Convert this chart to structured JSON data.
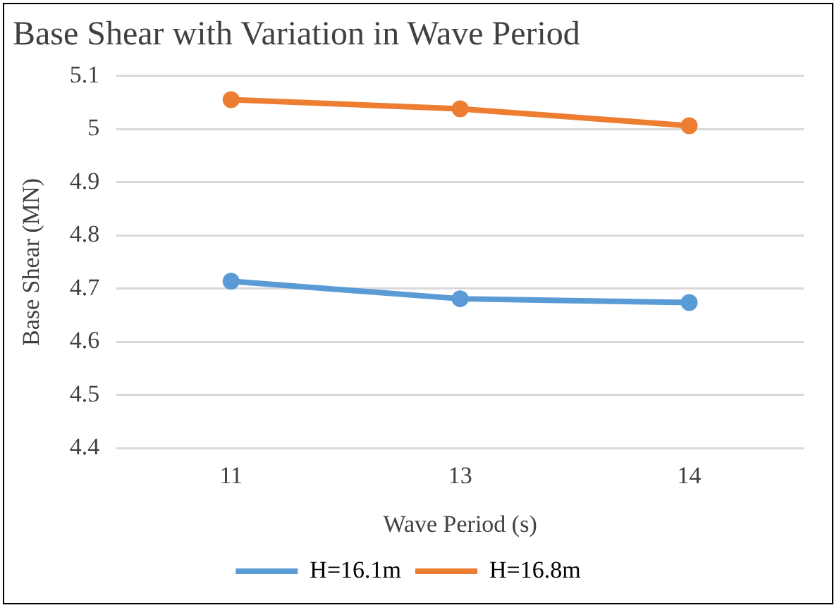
{
  "chart_data": {
    "type": "line",
    "title": "Base Shear with Variation in Wave Period",
    "xlabel": "Wave Period (s)",
    "ylabel": "Base Shear (MN)",
    "categories": [
      "11",
      "13",
      "14"
    ],
    "series": [
      {
        "name": "H=16.1m",
        "color": "#5b9bd5",
        "values": [
          4.714,
          4.681,
          4.674
        ]
      },
      {
        "name": "H=16.8m",
        "color": "#ed7d31",
        "values": [
          5.055,
          5.038,
          5.006
        ]
      }
    ],
    "ylim": [
      4.4,
      5.1
    ],
    "yticks": [
      4.4,
      4.5,
      4.6,
      4.7,
      4.8,
      4.9,
      5,
      5.1
    ],
    "grid": "y",
    "legend": "bottom",
    "marker": "circle",
    "line_style": "solid"
  }
}
